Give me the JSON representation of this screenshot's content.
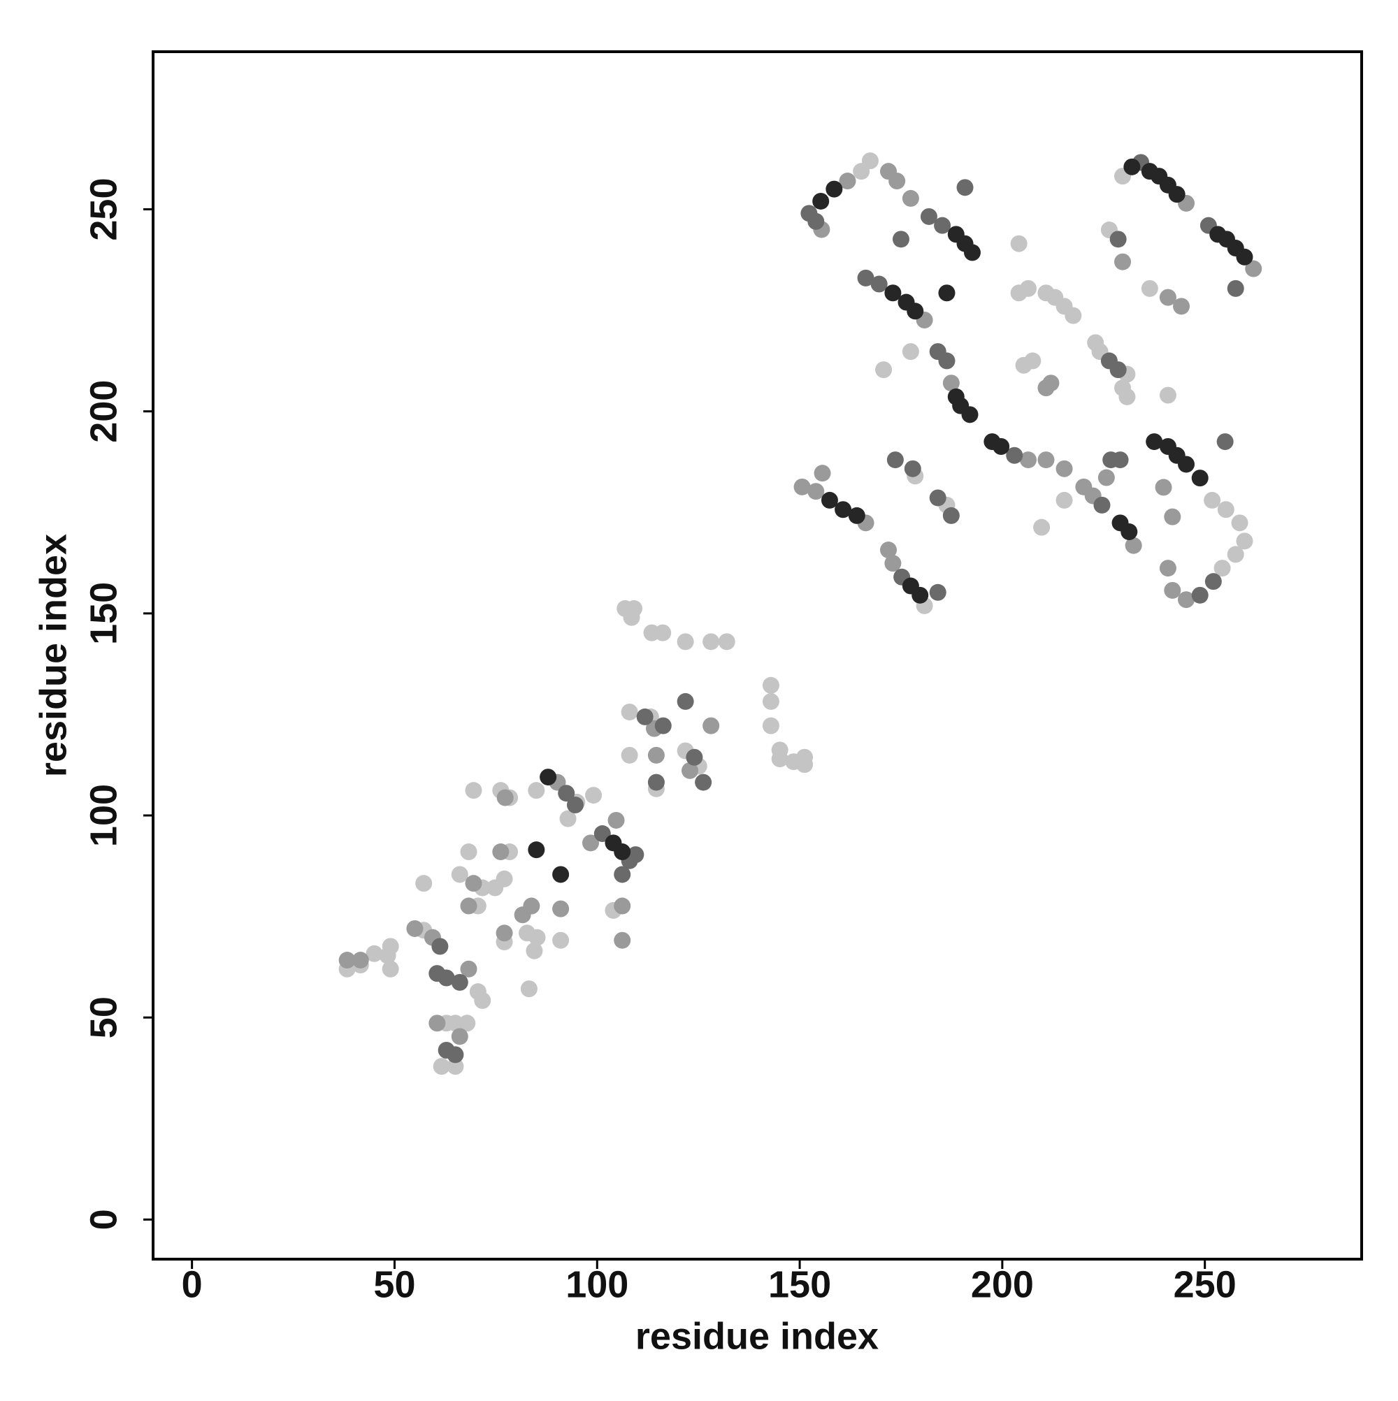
{
  "chart_data": {
    "type": "scatter",
    "x_label": "residue index",
    "y_label": "residue index",
    "xlim": [
      -9.6,
      288.7
    ],
    "ylim": [
      -9.8,
      289
    ],
    "xticks": [
      0,
      50,
      100,
      150,
      200,
      250
    ],
    "yticks": [
      0,
      50,
      100,
      150,
      200,
      250
    ],
    "series": [
      {
        "color": "#c4c4c4",
        "x": [
          165.2,
          167.4,
          204.1,
          204.1,
          206.4,
          210.8,
          213,
          215.3,
          217.5,
          205.3,
          207.5,
          223,
          224.1,
          230.8,
          229.7,
          230.8,
          240.9,
          226.4,
          229.7,
          236.4,
          209.7,
          215.3,
          251.8,
          255.2,
          258.6,
          259.8,
          257.6,
          254.3,
          180.8,
          178.5,
          186.3,
          170.7,
          177.4,
          38.3,
          45,
          48.3,
          49,
          49,
          57.2,
          57.2,
          70.6,
          71.7,
          65,
          67.9,
          61.6,
          65,
          69.5,
          76.2,
          78.4,
          68.3,
          78.4,
          66.1,
          71.7,
          74.8,
          77.1,
          70.6,
          77.1,
          82.7,
          85.2,
          84.5,
          83.2,
          91,
          85,
          99.1,
          92.8,
          104,
          108,
          114.6,
          108,
          113.2,
          106.9,
          109.1,
          108.5,
          113.5,
          116.2,
          121.8,
          125.1,
          121.8,
          128.1,
          132,
          142.9,
          142.9,
          142.9,
          145.1,
          145.1,
          148.5,
          151.2,
          151.2,
          95,
          62.8,
          41.6
        ],
        "y": [
          259.4,
          262,
          241.5,
          229.3,
          230.4,
          229.3,
          228.2,
          226,
          223.7,
          211.4,
          212.5,
          217,
          214.8,
          209.2,
          205.8,
          203.6,
          204,
          244.9,
          258.2,
          230.4,
          171.3,
          178,
          178,
          175.7,
          172.4,
          167.9,
          164.6,
          161.2,
          151.9,
          184,
          176.8,
          210.3,
          214.8,
          62,
          65.8,
          65.3,
          62,
          67.6,
          71.6,
          83.2,
          56.4,
          54.2,
          48.6,
          48.6,
          37.9,
          37.9,
          106.2,
          106.2,
          104.4,
          91,
          91,
          85.4,
          82.1,
          82.1,
          84.3,
          77.6,
          68.7,
          70.9,
          69.8,
          66.5,
          57.1,
          69.1,
          106.2,
          105,
          99.2,
          76.5,
          114.9,
          106.6,
          125.6,
          124.4,
          151.2,
          151.2,
          149,
          145.2,
          145.2,
          116,
          112.2,
          143,
          143,
          143,
          132.2,
          128.2,
          122.2,
          116.2,
          114,
          113.3,
          114.4,
          112.6,
          103.3,
          48.6,
          63
        ]
      },
      {
        "color": "#9a9a9a",
        "x": [
          155.4,
          161.8,
          171.9,
          174,
          177.4,
          171.9,
          173,
          180.8,
          187.4,
          150.6,
          154,
          155.6,
          166.3,
          206.4,
          210.8,
          215.3,
          220.1,
          222.4,
          232.4,
          225.7,
          229.7,
          245.4,
          262,
          239.8,
          242,
          240.9,
          242,
          245.4,
          210.8,
          212,
          240.9,
          244.2,
          38.3,
          41.6,
          55,
          59.4,
          68.3,
          60.5,
          66.1,
          69.5,
          77.3,
          76.2,
          68.3,
          77.1,
          81.6,
          83.8,
          91,
          90.2,
          98.4,
          104.7,
          106.2,
          106.2,
          114.6,
          114.1,
          122.9,
          128.1
        ],
        "y": [
          245,
          257,
          259.4,
          257,
          252.7,
          165.7,
          162.4,
          222.6,
          207,
          181.3,
          180.2,
          184.7,
          172.4,
          188,
          188,
          185.8,
          181.3,
          179.1,
          166.8,
          183.6,
          237,
          251.5,
          235.3,
          181.2,
          173.9,
          161.2,
          155.7,
          153.4,
          205.8,
          207,
          228.2,
          226,
          64.2,
          64.2,
          72,
          69.8,
          62,
          48.6,
          45.3,
          83.2,
          104.4,
          91,
          77.6,
          70.9,
          75.4,
          77.6,
          76.9,
          108.2,
          93.2,
          98.8,
          77.6,
          69.1,
          114.9,
          121.5,
          111.1,
          122.2
        ]
      },
      {
        "color": "#6a6a6a",
        "x": [
          152.3,
          154,
          166.3,
          169.6,
          181.9,
          185.2,
          184.1,
          186.3,
          175,
          190.8,
          203,
          226.8,
          229.1,
          224.6,
          250.9,
          257.6,
          234.2,
          175.2,
          184.1,
          173.6,
          177.9,
          187.4,
          61.2,
          60.5,
          62.8,
          66.1,
          62.8,
          65,
          94.6,
          92.4,
          101.3,
          108,
          109.5,
          106.2,
          116.3,
          121.8,
          126.2,
          124,
          228.6,
          255,
          252.1,
          248.8,
          184.1,
          226.4,
          228.6,
          114.6,
          111.8
        ],
        "y": [
          249,
          247,
          233,
          231.5,
          248.2,
          246,
          214.8,
          212.5,
          242.6,
          255.4,
          189.1,
          188,
          188,
          176.8,
          246,
          230.4,
          261.6,
          159,
          155.2,
          188,
          185.8,
          174.2,
          67.6,
          60.9,
          59.8,
          58.7,
          41.9,
          40.8,
          102.6,
          105.5,
          95.5,
          88.8,
          90.3,
          85.4,
          122.2,
          128.2,
          108.2,
          114.4,
          242.6,
          192.5,
          157.9,
          154.5,
          178.6,
          212.5,
          210.3,
          108.2,
          124.4
        ]
      },
      {
        "color": "#262626",
        "x": [
          155.2,
          158.5,
          188.6,
          190.8,
          192.6,
          173,
          176.3,
          178.5,
          186.3,
          188.6,
          189.7,
          192,
          197.5,
          199.7,
          236.4,
          238.7,
          240.9,
          243.1,
          253.2,
          255.4,
          257.6,
          259.8,
          229.1,
          231.3,
          237.5,
          240.9,
          243.1,
          245.4,
          248.8,
          157.4,
          160.7,
          164.1,
          177.4,
          179.7,
          85,
          91,
          87.9,
          104,
          106.2,
          232
        ],
        "y": [
          252,
          255,
          243.8,
          241.5,
          239.3,
          229.3,
          227,
          224.8,
          229.3,
          203.6,
          201.4,
          199.2,
          192.5,
          191.3,
          259.4,
          258.2,
          256,
          253.7,
          243.8,
          242.6,
          240.4,
          238.2,
          172.4,
          170.2,
          192.5,
          191.3,
          189.1,
          186.9,
          183.5,
          178,
          175.7,
          174.2,
          156.8,
          154.5,
          91.5,
          85.4,
          109.5,
          93.2,
          91,
          260.5
        ]
      }
    ]
  }
}
